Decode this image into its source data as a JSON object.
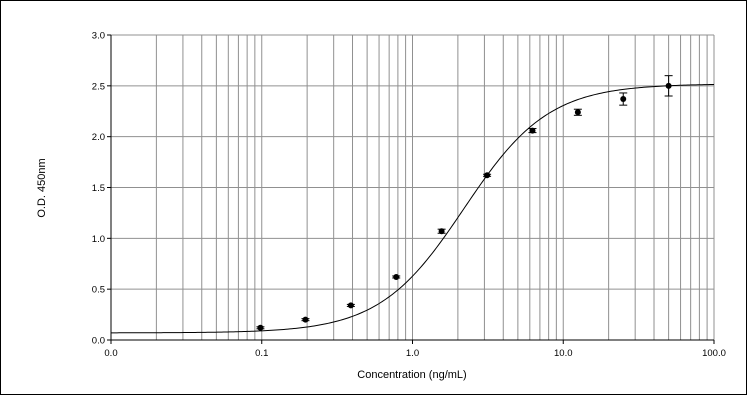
{
  "chart_data": {
    "type": "scatter",
    "title": "",
    "xlabel": "Concentration (ng/mL)",
    "ylabel": "O.D. 450nm",
    "x_scale": "log",
    "xlim": [
      0.01,
      100.0
    ],
    "ylim": [
      0.0,
      3.0
    ],
    "x_tick_labels": [
      "0.0",
      "0.1",
      "1.0",
      "10.0",
      "100.0"
    ],
    "y_tick_labels": [
      "0.0",
      "0.5",
      "1.0",
      "1.5",
      "2.0",
      "2.5",
      "3.0"
    ],
    "grid": true,
    "series": [
      {
        "x": [
          0.098,
          0.195,
          0.39,
          0.78,
          1.56,
          3.125,
          6.25,
          12.5,
          25,
          50
        ],
        "y": [
          0.12,
          0.2,
          0.34,
          0.62,
          1.07,
          1.62,
          2.06,
          2.24,
          2.37,
          2.5
        ],
        "error": [
          0.01,
          0.01,
          0.01,
          0.01,
          0.02,
          0.01,
          0.02,
          0.03,
          0.06,
          0.1
        ]
      }
    ],
    "fit_curve": {
      "type": "4PL",
      "a": 0.07,
      "d": 2.52,
      "c": 2.2,
      "b": 1.55
    },
    "colors": {
      "background": "#ffffff",
      "grid": "#909090",
      "curve": "#000000",
      "points": "#000000"
    }
  }
}
